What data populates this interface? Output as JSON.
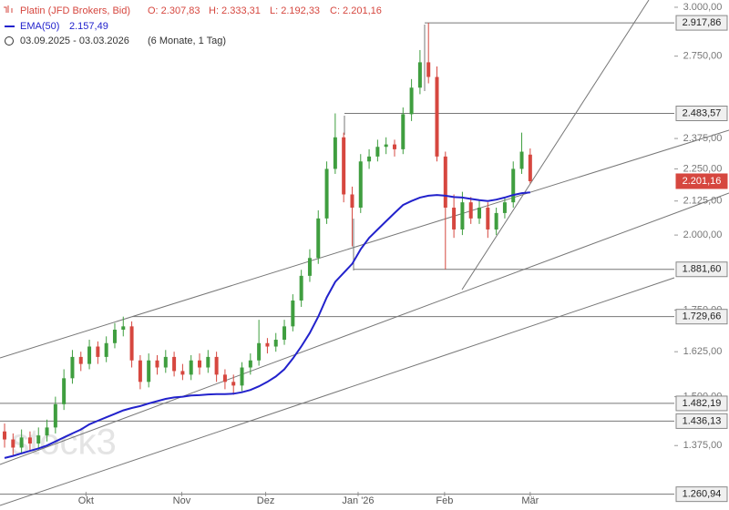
{
  "chart_data": {
    "type": "candlestick",
    "legend": {
      "instrument": "Platin (JFD Brokers, Bid)",
      "open": "O: 2.307,83",
      "high": "H: 2.333,31",
      "low": "L: 2.192,33",
      "close": "C: 2.201,16",
      "indicator": "EMA(50)",
      "indicator_value": "2.157,49",
      "period": "03.09.2025 - 03.03.2026",
      "range": "(6 Monate, 1 Tag)"
    },
    "watermark": "stock3",
    "log_scale": true,
    "up_color": "#3f9e3f",
    "down_color": "#d6473f",
    "open": [
      1410,
      1390,
      1370,
      1395,
      1380,
      1400,
      1420,
      1480,
      1550,
      1610,
      1590,
      1640,
      1610,
      1650,
      1690,
      1700,
      1600,
      1540,
      1600,
      1580,
      1610,
      1570,
      1560,
      1600,
      1580,
      1610,
      1560,
      1540,
      1530,
      1580,
      1600,
      1650,
      1640,
      1660,
      1700,
      1780,
      1860,
      1920,
      2060,
      2250,
      2380,
      2150,
      2100,
      2280,
      2300,
      2340,
      2350,
      2330,
      2480,
      2600,
      2720,
      2650,
      2300,
      2100,
      2020,
      2120,
      2060,
      2100,
      2020,
      2080,
      2120,
      2250,
      2307.83
    ],
    "high": [
      1430,
      1405,
      1415,
      1410,
      1420,
      1440,
      1500,
      1575,
      1630,
      1625,
      1660,
      1655,
      1670,
      1710,
      1729.66,
      1715,
      1615,
      1620,
      1615,
      1630,
      1625,
      1590,
      1615,
      1620,
      1630,
      1625,
      1575,
      1560,
      1595,
      1620,
      1720,
      1665,
      1680,
      1720,
      1800,
      1880,
      1950,
      2090,
      2280,
      2483.57,
      2400,
      2180,
      2310,
      2330,
      2370,
      2380,
      2370,
      2510,
      2640,
      2780,
      2917.86,
      2700,
      2320,
      2150,
      2160,
      2140,
      2130,
      2120,
      2100,
      2140,
      2280,
      2400,
      2333.31
    ],
    "low": [
      1370,
      1350,
      1355,
      1360,
      1365,
      1385,
      1405,
      1465,
      1535,
      1570,
      1575,
      1590,
      1595,
      1635,
      1670,
      1580,
      1520,
      1525,
      1560,
      1565,
      1555,
      1545,
      1545,
      1560,
      1565,
      1540,
      1520,
      1505,
      1515,
      1560,
      1585,
      1620,
      1625,
      1645,
      1685,
      1760,
      1840,
      1900,
      2040,
      2230,
      2120,
      1960,
      2080,
      2250,
      2280,
      2310,
      2300,
      2310,
      2450,
      2570,
      2620,
      2280,
      1881.6,
      1990,
      2000,
      2040,
      2040,
      1990,
      2000,
      2060,
      2100,
      2230,
      2192.33
    ],
    "close": [
      1390,
      1370,
      1395,
      1380,
      1400,
      1420,
      1480,
      1550,
      1610,
      1590,
      1640,
      1610,
      1650,
      1690,
      1700,
      1600,
      1540,
      1600,
      1580,
      1610,
      1570,
      1560,
      1600,
      1580,
      1610,
      1560,
      1540,
      1530,
      1580,
      1600,
      1650,
      1640,
      1660,
      1700,
      1780,
      1860,
      1920,
      2060,
      2250,
      2380,
      2150,
      2100,
      2280,
      2300,
      2340,
      2350,
      2330,
      2480,
      2600,
      2720,
      2650,
      2300,
      2100,
      2020,
      2120,
      2060,
      2100,
      2020,
      2080,
      2120,
      2250,
      2320,
      2201.16
    ],
    "ema": {
      "name": "EMA(50)",
      "color": "#2222cc",
      "values": [
        1345,
        1350,
        1356,
        1362,
        1368,
        1375,
        1385,
        1395,
        1405,
        1415,
        1428,
        1437,
        1446,
        1455,
        1464,
        1470,
        1475,
        1482,
        1488,
        1494,
        1498,
        1500,
        1503,
        1504,
        1506,
        1507,
        1507,
        1508,
        1512,
        1518,
        1528,
        1540,
        1555,
        1575,
        1605,
        1640,
        1680,
        1730,
        1790,
        1840,
        1870,
        1900,
        1950,
        1990,
        2020,
        2050,
        2080,
        2110,
        2125,
        2138,
        2145,
        2148,
        2145,
        2140,
        2138,
        2133,
        2128,
        2125,
        2130,
        2138,
        2148,
        2155,
        2157.49
      ]
    },
    "xlim": [
      -0.54,
      79
    ],
    "xticks": [
      {
        "value": 9.6,
        "label": "Okt"
      },
      {
        "value": 20.9,
        "label": "Nov"
      },
      {
        "value": 30.8,
        "label": "Dez"
      },
      {
        "value": 41.7,
        "label": "Jan '26"
      },
      {
        "value": 51.9,
        "label": "Feb"
      },
      {
        "value": 62,
        "label": "Mär"
      }
    ],
    "ylim": [
      1226,
      3039
    ],
    "yticks": [
      {
        "value": 3000,
        "label": "3.000,00"
      },
      {
        "value": 2750,
        "label": "2.750,00"
      },
      {
        "value": 2375,
        "label": "2.375,00"
      },
      {
        "value": 2250,
        "label": "2.250,00"
      },
      {
        "value": 2125,
        "label": "2.125,00"
      },
      {
        "value": 2000,
        "label": "2.000,00"
      },
      {
        "value": 1750,
        "label": "1.750,00"
      },
      {
        "value": 1625,
        "label": "1.625,00"
      },
      {
        "value": 1500,
        "label": "1.500,00"
      },
      {
        "value": 1375,
        "label": "1.375,00"
      }
    ],
    "levels": [
      {
        "value": 2917.86,
        "label": "2.917,86"
      },
      {
        "value": 2483.57,
        "label": "2.483,57"
      },
      {
        "value": 2201.16,
        "label": "2.201,16",
        "color": "#d6473f"
      },
      {
        "value": 1881.6,
        "label": "1.881,60"
      },
      {
        "value": 1729.66,
        "label": "1.729,66"
      },
      {
        "value": 1482.19,
        "label": "1.482,19"
      },
      {
        "value": 1436.13,
        "label": "1.436,13"
      },
      {
        "value": 1260.94,
        "label": "1.260,94"
      }
    ]
  }
}
